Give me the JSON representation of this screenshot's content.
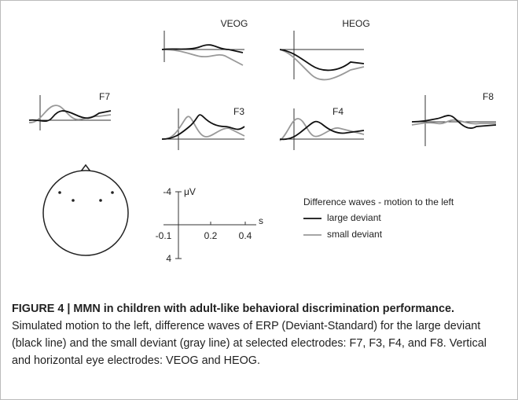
{
  "panels": {
    "veog": "VEOG",
    "heog": "HEOG",
    "f7": "F7",
    "f3": "F3",
    "f4": "F4",
    "f8": "F8"
  },
  "scale": {
    "y_top": -4,
    "y_unit": "μV",
    "y_bottom": 4,
    "x_unit": "s",
    "x_ticks": [
      -0.1,
      0.2,
      0.4
    ]
  },
  "legend": {
    "title": "Difference waves - motion to the left",
    "large": "large deviant",
    "small": "small deviant"
  },
  "caption": {
    "label": "FIGURE 4 | MMN in children with adult-like behavioral discrimination performance.",
    "text": "Simulated motion to the left, difference waves of ERP (Deviant-Standard) for the large deviant (black line) and the small deviant (gray line) at selected electrodes: F7, F3, F4, and F8. Vertical and horizontal eye electrodes: VEOG and HEOG."
  }
}
